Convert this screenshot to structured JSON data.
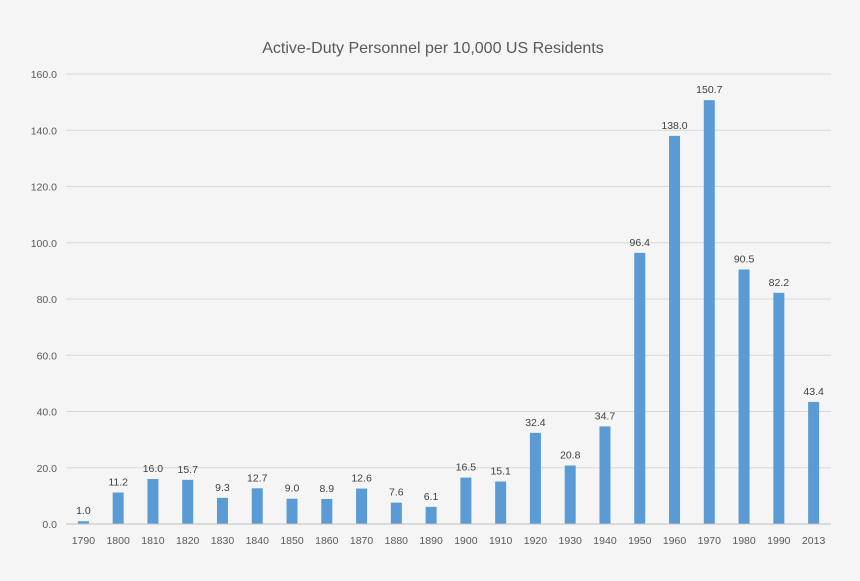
{
  "chart_data": {
    "type": "bar",
    "title": "Active-Duty Personnel per 10,000 US Residents",
    "xlabel": "",
    "ylabel": "",
    "categories": [
      "1790",
      "1800",
      "1810",
      "1820",
      "1830",
      "1840",
      "1850",
      "1860",
      "1870",
      "1880",
      "1890",
      "1900",
      "1910",
      "1920",
      "1930",
      "1940",
      "1950",
      "1960",
      "1970",
      "1980",
      "1990",
      "2013"
    ],
    "values": [
      1.0,
      11.2,
      16.0,
      15.7,
      9.3,
      12.7,
      9.0,
      8.9,
      12.6,
      7.6,
      6.1,
      16.5,
      15.1,
      32.4,
      20.8,
      34.7,
      96.4,
      138.0,
      150.7,
      90.5,
      82.2,
      43.4
    ],
    "data_labels": [
      "1.0",
      "11.2",
      "16.0",
      "15.7",
      "9.3",
      "12.7",
      "9.0",
      "8.9",
      "12.6",
      "7.6",
      "6.1",
      "16.5",
      "15.1",
      "32.4",
      "20.8",
      "34.7",
      "96.4",
      "138.0",
      "150.7",
      "90.5",
      "82.2",
      "43.4"
    ],
    "yticks": [
      "0.0",
      "20.0",
      "40.0",
      "60.0",
      "80.0",
      "100.0",
      "120.0",
      "140.0",
      "160.0"
    ],
    "ylim": [
      0,
      160
    ],
    "grid": true,
    "legend": "none",
    "bar_color": "#5b9bd5"
  }
}
